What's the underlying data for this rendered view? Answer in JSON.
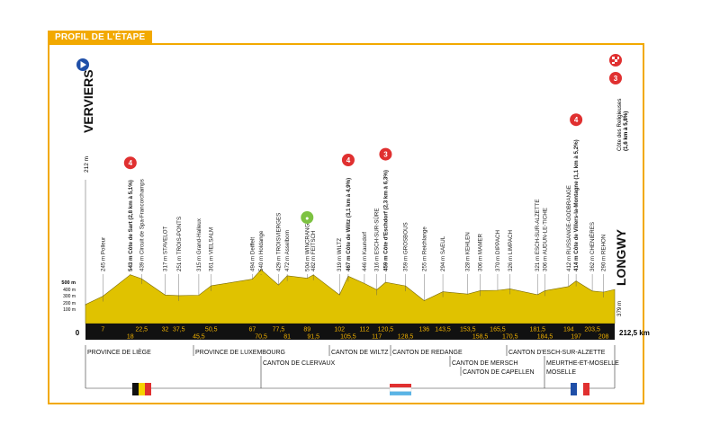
{
  "header": {
    "title": "PROFIL DE L'ÉTAPE"
  },
  "start": {
    "name": "VERVIERS",
    "alt": "212 m",
    "icon": "play-start-icon"
  },
  "finish": {
    "name": "LONGWY",
    "alt": "379 m",
    "climb": "Côte des Religieuses",
    "climb_detail": "(1,6 km à 5,8%)",
    "icon": "finish-flag-icon"
  },
  "colors": {
    "accent": "#f2a900",
    "profile_fill": "#e0c200",
    "strip": "#111111",
    "climb_badge": "#e03030",
    "sprint_badge": "#7dc242"
  },
  "total_distance": "212,5 km",
  "altitude_scale": {
    "max_label": "500 m",
    "ticks": [
      "400 m",
      "300 m",
      "200 m",
      "100 m"
    ],
    "zero": "0"
  },
  "waypoints": [
    {
      "km": 7,
      "label": "245 m Polleur"
    },
    {
      "km": 18,
      "label": "543 m Côte de Sart (2,8 km à 5,1%)",
      "bold": true,
      "badge": "4"
    },
    {
      "km": 22.5,
      "label": "439 m Circuit de Spa-Francorchamps"
    },
    {
      "km": 32,
      "label": "317 m STAVELOT"
    },
    {
      "km": 37.5,
      "label": "251 m TROIS-PONTS"
    },
    {
      "km": 45.5,
      "label": "315 m Grand-Halleux"
    },
    {
      "km": 50.5,
      "label": "361 m VIELSALM"
    },
    {
      "km": 67,
      "label": "494 m Deiffelt"
    },
    {
      "km": 70.5,
      "label": "540 m Holdange"
    },
    {
      "km": 77.5,
      "label": "429 m TROISVIERGES"
    },
    {
      "km": 81,
      "label": "472 m Asselborn"
    },
    {
      "km": 89,
      "label": "504 m WINCRANGE",
      "badge_sprint": true
    },
    {
      "km": 91.5,
      "label": "482 m FEITSCH"
    },
    {
      "km": 102,
      "label": "319 m WILTZ"
    },
    {
      "km": 105.5,
      "label": "467 m Côte de Wiltz (3,1 km à 4,9%)",
      "bold": true,
      "badge": "4"
    },
    {
      "km": 112,
      "label": "446 m Kaundorf"
    },
    {
      "km": 117,
      "label": "316 m ESCH-SUR-SÛRE"
    },
    {
      "km": 120.5,
      "label": "459 m Côte d'Eschdorf (2,3 km à 6,3%)",
      "bold": true,
      "badge": "3"
    },
    {
      "km": 128.5,
      "label": "359 m GROSBOUS"
    },
    {
      "km": 136,
      "label": "255 m Reichlange"
    },
    {
      "km": 143.5,
      "label": "294 m SAEUL"
    },
    {
      "km": 153.5,
      "label": "328 m KEHLEN"
    },
    {
      "km": 158.5,
      "label": "306 m MAMER"
    },
    {
      "km": 165.5,
      "label": "370 m DIPPACH"
    },
    {
      "km": 170.5,
      "label": "326 m LIMPACH"
    },
    {
      "km": 181.5,
      "label": "321 m ESCH-SUR-ALZETTE"
    },
    {
      "km": 184.5,
      "label": "306 m AUDUN-LE-TICHE"
    },
    {
      "km": 194,
      "label": "412 m RUSSANGE-GODBRANGE"
    },
    {
      "km": 197,
      "label": "414 m Côte de Villers-la-Montagne (1,1 km à 5,2%)",
      "bold": true,
      "badge": "4"
    },
    {
      "km": 203.5,
      "label": "362 m CHENIÈRES"
    },
    {
      "km": 208,
      "label": "290 m REHON"
    }
  ],
  "km_top": [
    "7",
    "22,5",
    "32",
    "37,5",
    "50,5",
    "67",
    "77,5",
    "89",
    "102",
    "112",
    "120,5",
    "136",
    "143,5",
    "153,5",
    "165,5",
    "181,5",
    "194",
    "203,5"
  ],
  "km_bottom": [
    "18",
    "45,5",
    "70,5",
    "81",
    "91,5",
    "105,5",
    "117",
    "128,5",
    "158,5",
    "170,5",
    "184,5",
    "197",
    "208"
  ],
  "regions_row1": [
    "PROVINCE DE LIÈGE",
    "PROVINCE DE LUXEMBOURG",
    "CANTON DE WILTZ",
    "CANTON DE REDANGE",
    "CANTON D'ESCH-SUR-ALZETTE"
  ],
  "regions_row2": [
    "CANTON DE CLERVAUX",
    "CANTON DE MERSCH",
    "MEURTHE-ET-MOSELLE"
  ],
  "regions_row3": [
    "CANTON DE CAPELLEN",
    "MOSELLE"
  ],
  "flags": [
    "belgium-flag",
    "luxembourg-flag",
    "france-flag"
  ]
}
